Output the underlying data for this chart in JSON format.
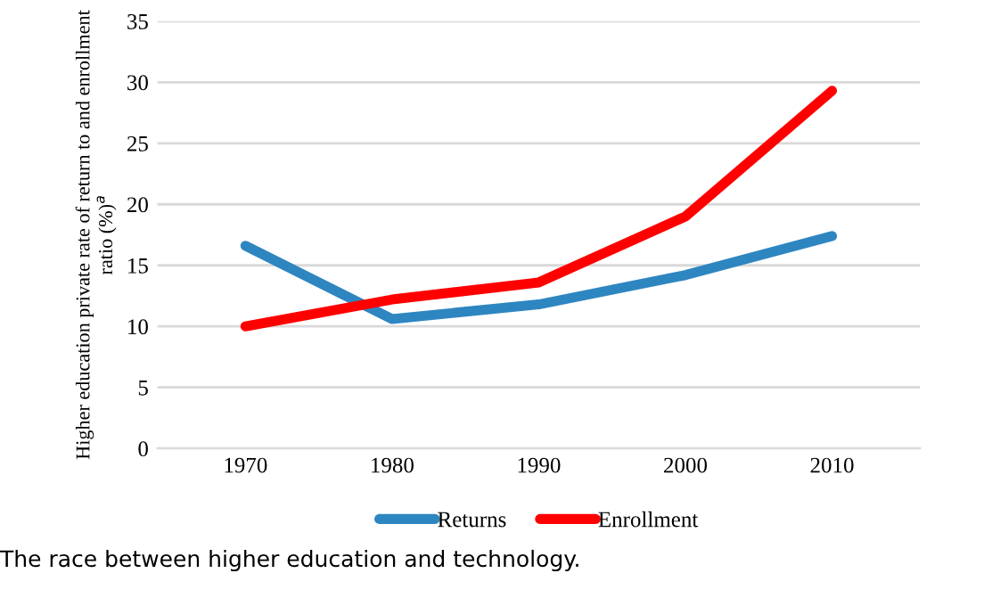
{
  "chart_data": {
    "type": "line",
    "ylabel": "Higher education private rate of return to and enrollment ratio (%)$^{a}$",
    "categories": [
      "1970",
      "1980",
      "1990",
      "2000",
      "2010"
    ],
    "series": [
      {
        "name": "Returns",
        "color": "#2e86c1",
        "values": [
          16.6,
          10.6,
          11.8,
          14.2,
          17.4
        ]
      },
      {
        "name": "Enrollment",
        "color": "#ff0000",
        "values": [
          10.0,
          12.2,
          13.6,
          19.0,
          29.3
        ]
      }
    ],
    "ylim": [
      0,
      35
    ],
    "yticks": [
      0,
      5,
      10,
      15,
      20,
      25,
      30,
      35
    ],
    "grid": "y",
    "legend": "bottom",
    "marker": "none",
    "line_style": "solid",
    "annotations": [
      "The race between higher education and technology."
    ]
  }
}
